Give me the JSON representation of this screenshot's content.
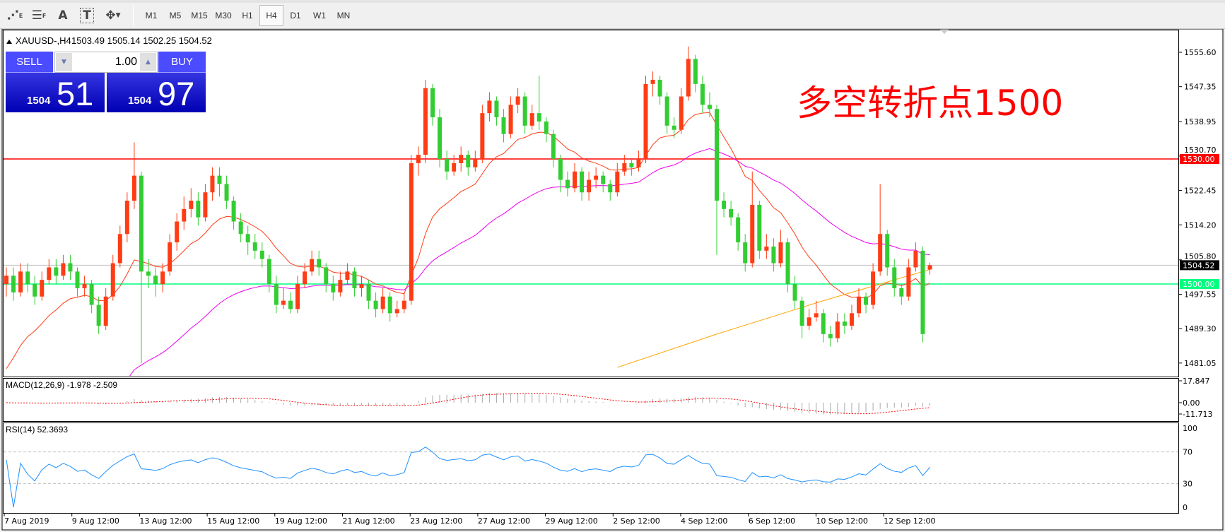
{
  "toolbar": {
    "icons": [
      "fibonacci-fan-icon",
      "fibonacci-lines-icon",
      "text-icon",
      "text-label-icon",
      "arrows-icon"
    ],
    "text_icon": "A",
    "label_icon": "T",
    "timeframes": [
      "M1",
      "M5",
      "M15",
      "M30",
      "H1",
      "H4",
      "D1",
      "W1",
      "MN"
    ],
    "active_timeframe": "H4"
  },
  "header": {
    "symbol": "XAUUSD-,H4",
    "ohlc": "1503.49 1505.14 1502.25 1504.52"
  },
  "trade": {
    "sell_label": "SELL",
    "buy_label": "BUY",
    "volume": "1.00",
    "sell_big": "1504",
    "sell_small": "51",
    "buy_big": "1504",
    "buy_small": "97"
  },
  "annotation": {
    "text": "多空转折点1500",
    "color": "#ff0000"
  },
  "colors": {
    "bull": "#ff3c14",
    "bear": "#32cd32",
    "fast_ma": "#ff3c14",
    "mid_ma": "#ee00ee",
    "slow_ma": "#ffa500",
    "rsi": "#1e90ff",
    "macd_signal": "#ff0000",
    "hline_red": "#ff0000",
    "hline_green": "#00ff7f"
  },
  "price_axis": {
    "ticks": [
      "1555.60",
      "1547.35",
      "1538.95",
      "1530.70",
      "1522.45",
      "1514.20",
      "1505.80",
      "1497.55",
      "1489.30",
      "1481.05"
    ],
    "lines": [
      {
        "value": 1530.0,
        "label": "1530.00",
        "color": "#ff0000"
      },
      {
        "value": 1500.0,
        "label": "1500.00",
        "color": "#00ff7f"
      }
    ],
    "current": {
      "value": 1504.52,
      "label": "1504.52"
    }
  },
  "macd": {
    "label": "MACD(12,26,9) -1.978 -2.509",
    "ticks": [
      "17.847",
      "0.00",
      "-11.713"
    ]
  },
  "rsi": {
    "label": "RSI(14) 52.3693",
    "ticks": [
      "100",
      "70",
      "30",
      "0"
    ]
  },
  "time_axis": [
    "7 Aug 2019",
    "9 Aug 12:00",
    "13 Aug 12:00",
    "15 Aug 12:00",
    "19 Aug 12:00",
    "21 Aug 12:00",
    "23 Aug 12:00",
    "27 Aug 12:00",
    "29 Aug 12:00",
    "2 Sep 12:00",
    "4 Sep 12:00",
    "6 Sep 12:00",
    "10 Sep 12:00",
    "12 Sep 12:00"
  ],
  "chart_data": {
    "type": "candlestick",
    "ylim": [
      1478,
      1560
    ],
    "slow_ma": [
      [
        86,
        1480
      ],
      [
        100,
        1488
      ],
      [
        115,
        1496
      ],
      [
        130,
        1503.5
      ]
    ],
    "candles": [
      [
        1500,
        1504,
        1497,
        1502
      ],
      [
        1502,
        1504,
        1496,
        1498
      ],
      [
        1498,
        1505,
        1497,
        1503
      ],
      [
        1503,
        1505,
        1498,
        1500
      ],
      [
        1500,
        1502,
        1495,
        1497
      ],
      [
        1497,
        1503,
        1496,
        1501
      ],
      [
        1501,
        1506,
        1500,
        1504
      ],
      [
        1504,
        1506,
        1500,
        1502
      ],
      [
        1502,
        1507,
        1501,
        1505
      ],
      [
        1505,
        1507,
        1501,
        1503
      ],
      [
        1503,
        1504,
        1497,
        1499
      ],
      [
        1499,
        1502,
        1497,
        1500
      ],
      [
        1500,
        1501,
        1493,
        1495
      ],
      [
        1495,
        1497,
        1488,
        1490
      ],
      [
        1490,
        1499,
        1489,
        1497
      ],
      [
        1497,
        1507,
        1496,
        1505
      ],
      [
        1505,
        1514,
        1504,
        1512
      ],
      [
        1512,
        1522,
        1510,
        1520
      ],
      [
        1520,
        1534,
        1518,
        1526
      ],
      [
        1526,
        1527,
        1481,
        1503
      ],
      [
        1503,
        1506,
        1499,
        1502
      ],
      [
        1502,
        1504,
        1497,
        1500
      ],
      [
        1500,
        1505,
        1498,
        1503
      ],
      [
        1503,
        1512,
        1502,
        1510
      ],
      [
        1510,
        1517,
        1508,
        1515
      ],
      [
        1515,
        1521,
        1513,
        1518
      ],
      [
        1518,
        1523,
        1516,
        1520
      ],
      [
        1520,
        1522,
        1514,
        1516
      ],
      [
        1516,
        1524,
        1515,
        1522
      ],
      [
        1522,
        1528,
        1520,
        1526
      ],
      [
        1526,
        1528,
        1521,
        1524
      ],
      [
        1524,
        1526,
        1518,
        1520
      ],
      [
        1520,
        1521,
        1513,
        1515
      ],
      [
        1515,
        1517,
        1510,
        1512
      ],
      [
        1512,
        1514,
        1507,
        1510
      ],
      [
        1510,
        1512,
        1506,
        1508
      ],
      [
        1508,
        1510,
        1504,
        1506
      ],
      [
        1506,
        1507,
        1498,
        1500
      ],
      [
        1500,
        1502,
        1493,
        1495
      ],
      [
        1495,
        1499,
        1494,
        1496
      ],
      [
        1496,
        1498,
        1493,
        1494
      ],
      [
        1494,
        1502,
        1493,
        1500
      ],
      [
        1500,
        1505,
        1499,
        1503
      ],
      [
        1503,
        1508,
        1502,
        1506
      ],
      [
        1506,
        1508,
        1502,
        1504
      ],
      [
        1504,
        1505,
        1498,
        1500
      ],
      [
        1500,
        1502,
        1496,
        1498
      ],
      [
        1498,
        1503,
        1497,
        1501
      ],
      [
        1501,
        1505,
        1500,
        1503
      ],
      [
        1503,
        1504,
        1497,
        1499
      ],
      [
        1499,
        1502,
        1497,
        1500
      ],
      [
        1500,
        1501,
        1494,
        1496
      ],
      [
        1496,
        1498,
        1492,
        1494
      ],
      [
        1494,
        1499,
        1493,
        1497
      ],
      [
        1497,
        1498,
        1491,
        1493
      ],
      [
        1493,
        1496,
        1492,
        1494
      ],
      [
        1494,
        1498,
        1493,
        1496
      ],
      [
        1496,
        1531,
        1495,
        1529
      ],
      [
        1529,
        1533,
        1526,
        1531
      ],
      [
        1531,
        1549,
        1529,
        1547
      ],
      [
        1547,
        1548,
        1538,
        1540
      ],
      [
        1540,
        1542,
        1528,
        1530
      ],
      [
        1530,
        1532,
        1525,
        1527
      ],
      [
        1527,
        1531,
        1526,
        1529
      ],
      [
        1529,
        1533,
        1527,
        1531
      ],
      [
        1531,
        1532,
        1526,
        1528
      ],
      [
        1528,
        1532,
        1527,
        1530
      ],
      [
        1530,
        1543,
        1529,
        1541
      ],
      [
        1541,
        1546,
        1539,
        1544
      ],
      [
        1544,
        1545,
        1538,
        1540
      ],
      [
        1540,
        1542,
        1534,
        1536
      ],
      [
        1536,
        1545,
        1535,
        1543
      ],
      [
        1543,
        1547,
        1541,
        1545
      ],
      [
        1545,
        1546,
        1536,
        1538
      ],
      [
        1538,
        1543,
        1537,
        1541
      ],
      [
        1541,
        1550,
        1537,
        1539
      ],
      [
        1539,
        1540,
        1534,
        1536
      ],
      [
        1536,
        1537,
        1528,
        1530
      ],
      [
        1530,
        1531,
        1522,
        1525
      ],
      [
        1525,
        1527,
        1521,
        1523
      ],
      [
        1523,
        1529,
        1522,
        1527
      ],
      [
        1527,
        1528,
        1520,
        1522
      ],
      [
        1522,
        1527,
        1520,
        1525
      ],
      [
        1525,
        1528,
        1523,
        1526
      ],
      [
        1526,
        1527,
        1522,
        1524
      ],
      [
        1524,
        1525,
        1520,
        1522
      ],
      [
        1522,
        1529,
        1521,
        1527
      ],
      [
        1527,
        1531,
        1526,
        1529
      ],
      [
        1529,
        1530,
        1526,
        1528
      ],
      [
        1528,
        1532,
        1527,
        1530
      ],
      [
        1530,
        1550,
        1529,
        1548
      ],
      [
        1548,
        1551,
        1545,
        1549
      ],
      [
        1549,
        1550,
        1543,
        1545
      ],
      [
        1545,
        1546,
        1536,
        1538
      ],
      [
        1538,
        1540,
        1535,
        1537
      ],
      [
        1537,
        1547,
        1536,
        1545
      ],
      [
        1545,
        1557,
        1544,
        1554
      ],
      [
        1554,
        1555,
        1546,
        1548
      ],
      [
        1548,
        1550,
        1541,
        1543
      ],
      [
        1543,
        1546,
        1540,
        1542
      ],
      [
        1542,
        1543,
        1507,
        1520
      ],
      [
        1520,
        1522,
        1516,
        1518
      ],
      [
        1518,
        1520,
        1514,
        1516
      ],
      [
        1516,
        1517,
        1508,
        1510
      ],
      [
        1510,
        1512,
        1503,
        1505
      ],
      [
        1505,
        1527,
        1504,
        1519
      ],
      [
        1519,
        1520,
        1506,
        1508
      ],
      [
        1508,
        1512,
        1506,
        1509
      ],
      [
        1509,
        1511,
        1503,
        1505
      ],
      [
        1505,
        1513,
        1504,
        1510
      ],
      [
        1510,
        1511,
        1498,
        1500
      ],
      [
        1500,
        1502,
        1494,
        1496
      ],
      [
        1496,
        1497,
        1487,
        1490
      ],
      [
        1490,
        1494,
        1489,
        1492
      ],
      [
        1492,
        1496,
        1491,
        1493
      ],
      [
        1493,
        1494,
        1486,
        1488
      ],
      [
        1488,
        1490,
        1485,
        1487
      ],
      [
        1487,
        1493,
        1486,
        1491
      ],
      [
        1491,
        1493,
        1488,
        1490
      ],
      [
        1490,
        1495,
        1489,
        1493
      ],
      [
        1493,
        1499,
        1492,
        1497
      ],
      [
        1497,
        1498,
        1493,
        1495
      ],
      [
        1495,
        1505,
        1494,
        1503
      ],
      [
        1503,
        1524,
        1502,
        1512
      ],
      [
        1512,
        1513,
        1502,
        1504
      ],
      [
        1504,
        1506,
        1497,
        1499
      ],
      [
        1499,
        1500,
        1495,
        1497
      ],
      [
        1497,
        1506,
        1496,
        1504
      ],
      [
        1504,
        1510,
        1503,
        1508
      ],
      [
        1508,
        1509,
        1486,
        1488
      ],
      [
        1503.49,
        1505.14,
        1502.25,
        1504.52
      ]
    ]
  }
}
